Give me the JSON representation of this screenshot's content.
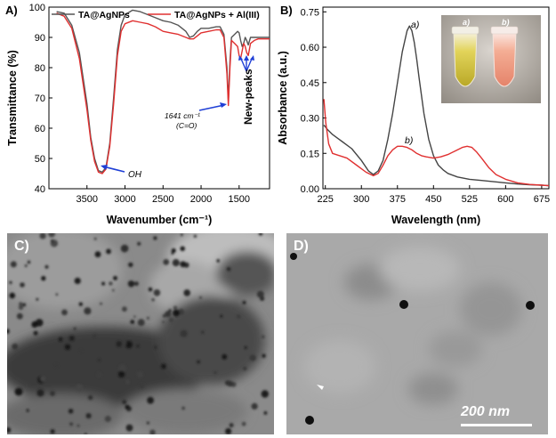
{
  "panelA": {
    "label": "A)",
    "chart_data": {
      "type": "line",
      "xlabel": "Wavenumber (cm⁻¹)",
      "ylabel": "Transmittance (%)",
      "xlim": [
        4000,
        1100
      ],
      "ylim": [
        40,
        100
      ],
      "xticks": [
        "3500",
        "3000",
        "2500",
        "2000",
        "1500"
      ],
      "xtick_values": [
        3500,
        3000,
        2500,
        2000,
        1500
      ],
      "yticks": [
        "40",
        "50",
        "60",
        "70",
        "80",
        "90",
        "100"
      ],
      "ytick_values": [
        40,
        50,
        60,
        70,
        80,
        90,
        100
      ],
      "series": [
        {
          "name": "TA@AgNPs",
          "color": "#555555",
          "x": [
            3900,
            3800,
            3700,
            3600,
            3500,
            3450,
            3400,
            3350,
            3300,
            3250,
            3200,
            3150,
            3100,
            3050,
            3000,
            2900,
            2800,
            2700,
            2600,
            2500,
            2400,
            2300,
            2200,
            2150,
            2100,
            2050,
            2000,
            1900,
            1800,
            1750,
            1700,
            1660,
            1641,
            1620,
            1600,
            1560,
            1520,
            1500,
            1480,
            1460,
            1440,
            1420,
            1400,
            1380,
            1350,
            1300,
            1250,
            1200,
            1150,
            1100
          ],
          "y": [
            98.5,
            98,
            94,
            85,
            68,
            57,
            50,
            46,
            45.5,
            47,
            55,
            70,
            86,
            94,
            97.5,
            99,
            98.5,
            97.5,
            96.5,
            95.5,
            95,
            94,
            92,
            90,
            90.5,
            92,
            93,
            93,
            93.5,
            93.5,
            91,
            80,
            69,
            82,
            90,
            91,
            92,
            91.5,
            89,
            87,
            88,
            90,
            89,
            87.5,
            90,
            90,
            90,
            90,
            90,
            90
          ]
        },
        {
          "name": "TA@AgNPs + Al(III)",
          "color": "#e03030",
          "x": [
            3900,
            3800,
            3700,
            3600,
            3500,
            3450,
            3400,
            3350,
            3300,
            3250,
            3200,
            3150,
            3100,
            3050,
            3000,
            2900,
            2800,
            2700,
            2600,
            2500,
            2400,
            2300,
            2200,
            2150,
            2100,
            2050,
            2000,
            1900,
            1800,
            1750,
            1700,
            1660,
            1641,
            1620,
            1600,
            1560,
            1520,
            1500,
            1480,
            1460,
            1440,
            1420,
            1400,
            1380,
            1350,
            1300,
            1250,
            1200,
            1150,
            1100
          ],
          "y": [
            98,
            97,
            93,
            83,
            66,
            56,
            49,
            45.5,
            45,
            46.5,
            54,
            68,
            84,
            92,
            94.5,
            95.5,
            95,
            94.5,
            93.5,
            92,
            91.5,
            91,
            90,
            89.5,
            89.5,
            90.5,
            91.5,
            92,
            92.5,
            92.5,
            90,
            78,
            67.5,
            80,
            89,
            88,
            87,
            84,
            83,
            85.5,
            88,
            87,
            85,
            84,
            88,
            89,
            89.5,
            89.5,
            89.5,
            89.5
          ]
        }
      ]
    },
    "annotations": {
      "oh": "OH",
      "peak_wavenumber": "1641 cm⁻¹",
      "peak_group": "(C=O)",
      "new_peaks": "New-peaks"
    }
  },
  "panelB": {
    "label": "B)",
    "chart_data": {
      "type": "line",
      "xlabel": "Wavelength (nm)",
      "ylabel": "Absorbance (a.u.)",
      "xlim": [
        220,
        690
      ],
      "ylim": [
        0,
        0.77
      ],
      "xticks": [
        "225",
        "300",
        "375",
        "450",
        "525",
        "600",
        "675"
      ],
      "xtick_values": [
        225,
        300,
        375,
        450,
        525,
        600,
        675
      ],
      "yticks": [
        "0.00",
        "0.15",
        "0.30",
        "0.45",
        "0.60",
        "0.75"
      ],
      "ytick_values": [
        0,
        0.15,
        0.3,
        0.45,
        0.6,
        0.75
      ],
      "series": [
        {
          "name": "a)",
          "color": "#444444",
          "x": [
            222,
            230,
            240,
            260,
            280,
            300,
            315,
            325,
            335,
            345,
            355,
            365,
            375,
            385,
            395,
            400,
            405,
            410,
            415,
            420,
            430,
            440,
            450,
            460,
            470,
            480,
            500,
            525,
            550,
            575,
            600,
            625,
            650,
            675,
            690
          ],
          "y": [
            0.27,
            0.25,
            0.23,
            0.2,
            0.17,
            0.12,
            0.075,
            0.06,
            0.075,
            0.12,
            0.21,
            0.32,
            0.45,
            0.58,
            0.67,
            0.69,
            0.67,
            0.62,
            0.55,
            0.47,
            0.32,
            0.21,
            0.14,
            0.1,
            0.08,
            0.065,
            0.05,
            0.04,
            0.035,
            0.03,
            0.025,
            0.02,
            0.017,
            0.015,
            0.013
          ]
        },
        {
          "name": "b)",
          "color": "#e03030",
          "x": [
            222,
            226,
            232,
            240,
            255,
            270,
            290,
            310,
            325,
            335,
            345,
            355,
            365,
            375,
            385,
            395,
            400,
            405,
            415,
            425,
            435,
            450,
            465,
            480,
            495,
            510,
            520,
            530,
            540,
            550,
            565,
            580,
            600,
            625,
            650,
            675,
            690
          ],
          "y": [
            0.38,
            0.28,
            0.19,
            0.15,
            0.14,
            0.13,
            0.1,
            0.07,
            0.055,
            0.065,
            0.1,
            0.14,
            0.165,
            0.18,
            0.18,
            0.175,
            0.17,
            0.165,
            0.15,
            0.14,
            0.135,
            0.13,
            0.135,
            0.145,
            0.16,
            0.175,
            0.18,
            0.175,
            0.155,
            0.13,
            0.09,
            0.06,
            0.04,
            0.025,
            0.018,
            0.015,
            0.013
          ]
        }
      ]
    },
    "annotations": {
      "peak_a": "a)",
      "peak_b": "b)"
    },
    "inset": {
      "tube_a": "a)",
      "tube_b": "b)",
      "tube_a_color": "#d8c842",
      "tube_b_color": "#f2a088"
    }
  },
  "panelC": {
    "label": "C)"
  },
  "panelD": {
    "label": "D)",
    "scale_bar": "200 nm"
  }
}
